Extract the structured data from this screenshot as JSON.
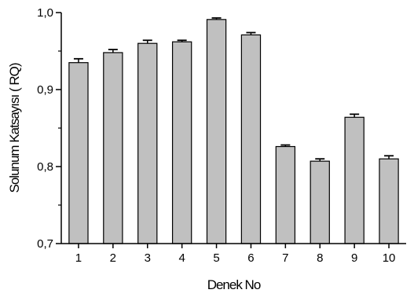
{
  "chart_data": {
    "type": "bar",
    "title": "",
    "xlabel": "Denek No",
    "ylabel": "Solunum Katsayısı ( RQ)",
    "categories": [
      "1",
      "2",
      "3",
      "4",
      "5",
      "6",
      "7",
      "8",
      "9",
      "10"
    ],
    "values": [
      0.935,
      0.948,
      0.96,
      0.962,
      0.991,
      0.971,
      0.826,
      0.807,
      0.864,
      0.81
    ],
    "errors": [
      0.005,
      0.004,
      0.004,
      0.002,
      0.002,
      0.003,
      0.002,
      0.003,
      0.004,
      0.004
    ],
    "ylim": [
      0.7,
      1.0
    ],
    "yticks": [
      "0,7",
      "0,8",
      "0,9",
      "1,0"
    ],
    "ytick_values": [
      0.7,
      0.8,
      0.9,
      1.0
    ],
    "bar_color": "#c0c0c0",
    "grid": false,
    "legend": "none"
  }
}
